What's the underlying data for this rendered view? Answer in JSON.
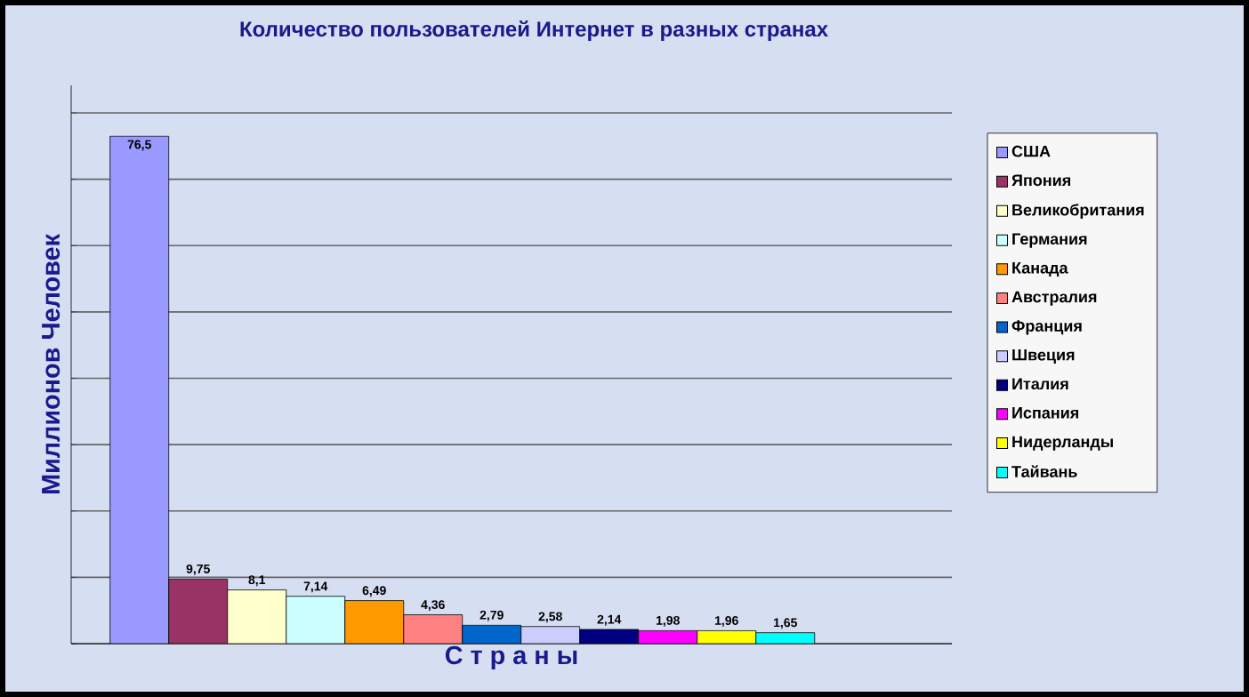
{
  "chart_data": {
    "type": "bar",
    "title": "Количество пользователей Интернет в разных странах",
    "xlabel": "С т р а н ы",
    "ylabel": "Миллионов  Человек",
    "categories": [
      null
    ],
    "series": [
      {
        "name": "США",
        "color": "#9999ff",
        "values": [
          76.5
        ],
        "value_labels": [
          "76,5"
        ]
      },
      {
        "name": "Япония",
        "color": "#993366",
        "values": [
          9.75
        ],
        "value_labels": [
          "9,75"
        ]
      },
      {
        "name": "Великобритания",
        "color": "#ffffcc",
        "values": [
          8.1
        ],
        "value_labels": [
          "8,1"
        ]
      },
      {
        "name": "Германия",
        "color": "#ccffff",
        "values": [
          7.14
        ],
        "value_labels": [
          "7,14"
        ]
      },
      {
        "name": "Канада",
        "color": "#ff9900",
        "values": [
          6.49
        ],
        "value_labels": [
          "6,49"
        ]
      },
      {
        "name": "Австралия",
        "color": "#ff8080",
        "values": [
          4.36
        ],
        "value_labels": [
          "4,36"
        ]
      },
      {
        "name": "Франция",
        "color": "#0066cc",
        "values": [
          2.79
        ],
        "value_labels": [
          "2,79"
        ]
      },
      {
        "name": "Швеция",
        "color": "#ccccff",
        "values": [
          2.58
        ],
        "value_labels": [
          "2,58"
        ]
      },
      {
        "name": "Италия",
        "color": "#000080",
        "values": [
          2.14
        ],
        "value_labels": [
          "2,14"
        ]
      },
      {
        "name": "Испания",
        "color": "#ff00ff",
        "values": [
          1.98
        ],
        "value_labels": [
          "1,98"
        ]
      },
      {
        "name": "Нидерланды",
        "color": "#ffff00",
        "values": [
          1.96
        ],
        "value_labels": [
          "1,96"
        ]
      },
      {
        "name": "Тайвань",
        "color": "#00ffff",
        "values": [
          1.65
        ],
        "value_labels": [
          "1,65"
        ]
      }
    ],
    "tick_labels": false,
    "grid": "y",
    "legend": "right"
  }
}
